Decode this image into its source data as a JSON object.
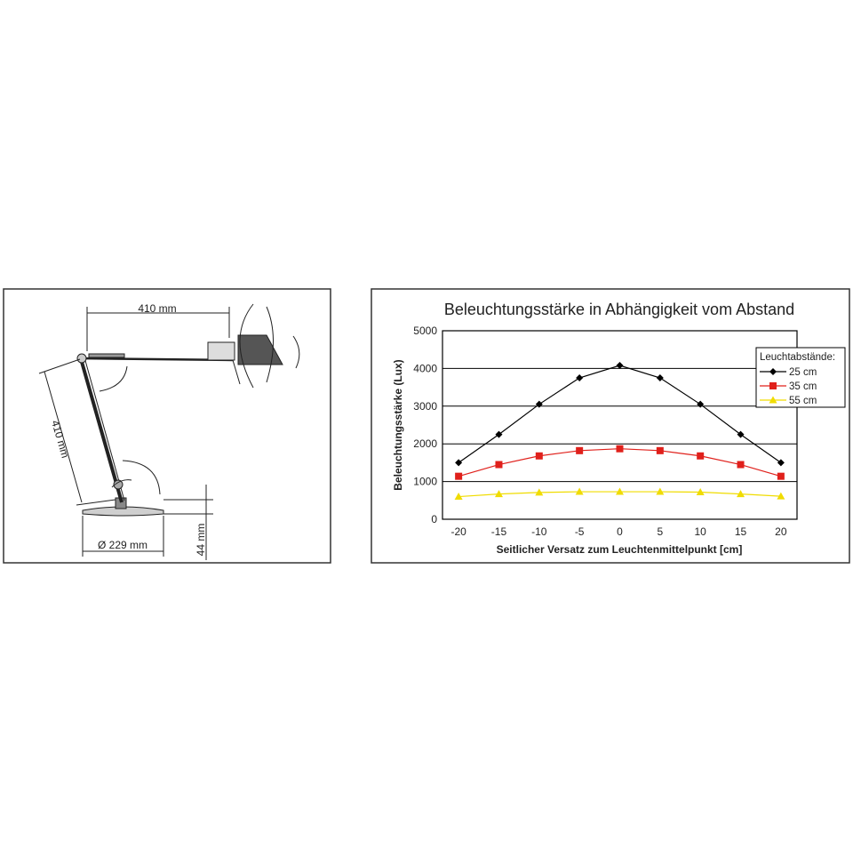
{
  "diagram": {
    "labels": [
      "410 mm",
      "410 mm",
      "Ø 229 mm",
      "44 mm"
    ]
  },
  "chart_data": {
    "type": "line",
    "title": "Beleuchtungsstärke in Abhängigkeit vom Abstand",
    "x_label": "Seitlicher Versatz zum Leuchtenmittelpunkt [cm]",
    "y_label": "Beleuchtungsstärke (Lux)",
    "legend_title": "Leuchtabstände:",
    "legend": "upper right",
    "grid": true,
    "x": [
      -20,
      -15,
      -10,
      -5,
      0,
      5,
      10,
      15,
      20
    ],
    "xlim": [
      -22,
      22
    ],
    "xticks": [
      -20,
      -15,
      -10,
      -5,
      0,
      5,
      10,
      15,
      20
    ],
    "ylim": [
      0,
      5000
    ],
    "yticks": [
      0,
      1000,
      2000,
      3000,
      4000,
      5000
    ],
    "series": [
      {
        "name": "25 cm",
        "color": "#000000",
        "marker": "diamond",
        "values": [
          1500,
          2250,
          3050,
          3750,
          4080,
          3750,
          3050,
          2250,
          1500
        ]
      },
      {
        "name": "35 cm",
        "color": "#e0201b",
        "marker": "square",
        "values": [
          1140,
          1450,
          1680,
          1820,
          1870,
          1820,
          1680,
          1450,
          1140
        ]
      },
      {
        "name": "55 cm",
        "color": "#f0dc00",
        "marker": "triangle",
        "values": [
          600,
          670,
          710,
          730,
          730,
          730,
          720,
          670,
          610
        ]
      }
    ]
  }
}
